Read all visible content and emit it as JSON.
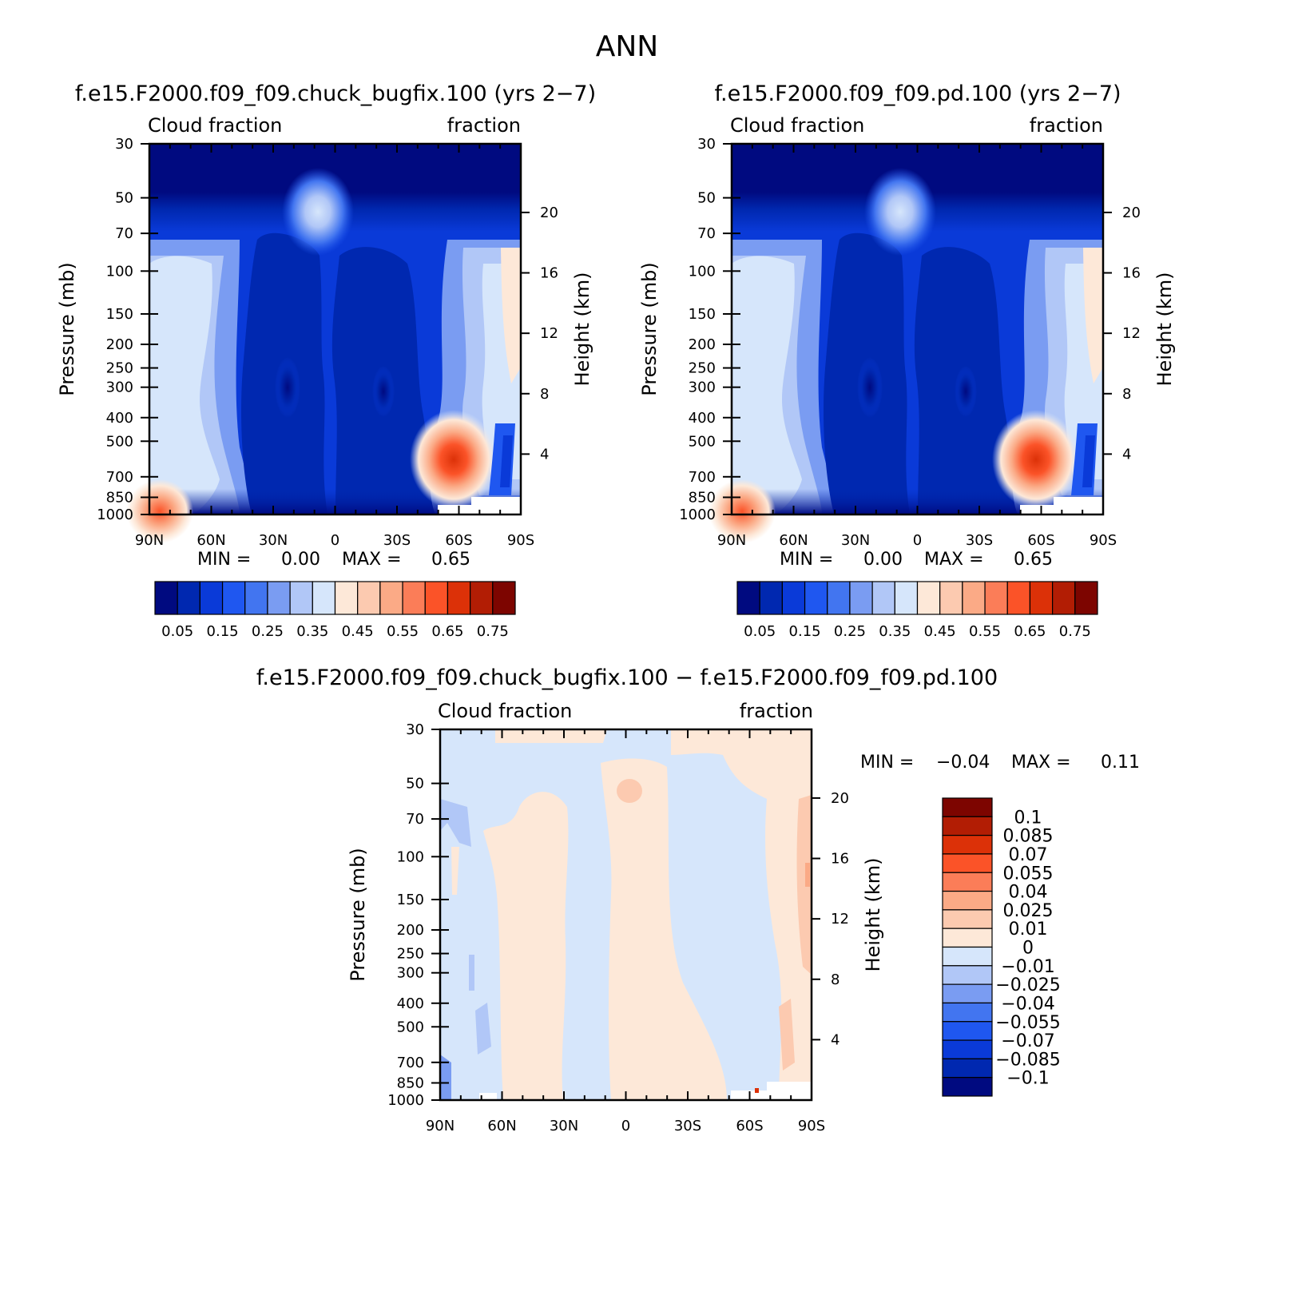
{
  "figure": {
    "title": "ANN"
  },
  "colors": {
    "abs_palette": [
      "#000a80",
      "#0028b0",
      "#0a3ad8",
      "#1f57f0",
      "#4275f0",
      "#7a9cf2",
      "#b1c7f7",
      "#d6e6fb",
      "#fde8d8",
      "#fccab0",
      "#fbaa86",
      "#fb7d58",
      "#fb5328",
      "#dc3108",
      "#b21d04",
      "#7d0500"
    ],
    "diff_palette": [
      "#000a80",
      "#0028b0",
      "#0a3ad8",
      "#1f57f0",
      "#4275f0",
      "#7a9cf2",
      "#b1c7f7",
      "#d6e6fb",
      "#fde8d8",
      "#fccab0",
      "#fbaa86",
      "#fb7d58",
      "#fb5328",
      "#dc3108",
      "#b21d04",
      "#7d0500"
    ]
  },
  "panels": {
    "p1": {
      "title": "f.e15.F2000.f09_f09.chuck_bugfix.100 (yrs 2−7)",
      "left_label": "Cloud fraction",
      "right_label": "fraction",
      "min_text": "MIN =",
      "min_value": "0.00",
      "max_text": "MAX =",
      "max_value": "0.65"
    },
    "p2": {
      "title": "f.e15.F2000.f09_f09.pd.100 (yrs 2−7)",
      "left_label": "Cloud fraction",
      "right_label": "fraction",
      "min_text": "MIN =",
      "min_value": "0.00",
      "max_text": "MAX =",
      "max_value": "0.65"
    },
    "p3": {
      "title": "f.e15.F2000.f09_f09.chuck_bugfix.100 − f.e15.F2000.f09_f09.pd.100",
      "left_label": "Cloud fraction",
      "right_label": "fraction",
      "min_text": "MIN =",
      "min_value": "−0.04",
      "max_text": "MAX =",
      "max_value": "0.11"
    }
  },
  "chart_data": [
    {
      "type": "heatmap",
      "title": "f.e15.F2000.f09_f09.chuck_bugfix.100 (yrs 2−7)",
      "xlabel": "",
      "ylabel": "Pressure (mb)",
      "y2label": "Height (km)",
      "x_ticks": [
        "90N",
        "60N",
        "30N",
        "0",
        "30S",
        "60S",
        "90S"
      ],
      "x_values": [
        90,
        60,
        30,
        0,
        -30,
        -60,
        -90
      ],
      "y_ticks": [
        "30",
        "50",
        "70",
        "100",
        "150",
        "200",
        "250",
        "300",
        "400",
        "500",
        "700",
        "850",
        "1000"
      ],
      "y_values": [
        30,
        50,
        70,
        100,
        150,
        200,
        250,
        300,
        400,
        500,
        700,
        850,
        1000
      ],
      "y2_ticks": [
        "20",
        "16",
        "12",
        "8",
        "4"
      ],
      "y2_values": [
        20,
        16,
        12,
        8,
        4
      ],
      "xlim": [
        90,
        -90
      ],
      "ylim": [
        1000,
        30
      ],
      "y_scale": "log",
      "min": 0.0,
      "max": 0.65,
      "colorbar_labels": [
        "0.05",
        "0.15",
        "0.25",
        "0.35",
        "0.45",
        "0.55",
        "0.65",
        "0.75"
      ],
      "levels": [
        0.05,
        0.1,
        0.15,
        0.2,
        0.25,
        0.3,
        0.35,
        0.4,
        0.45,
        0.5,
        0.55,
        0.6,
        0.65,
        0.7,
        0.75
      ],
      "colorbar_orientation": "horizontal"
    },
    {
      "type": "heatmap",
      "title": "f.e15.F2000.f09_f09.pd.100 (yrs 2−7)",
      "xlabel": "",
      "ylabel": "Pressure (mb)",
      "y2label": "Height (km)",
      "x_ticks": [
        "90N",
        "60N",
        "30N",
        "0",
        "30S",
        "60S",
        "90S"
      ],
      "x_values": [
        90,
        60,
        30,
        0,
        -30,
        -60,
        -90
      ],
      "y_ticks": [
        "30",
        "50",
        "70",
        "100",
        "150",
        "200",
        "250",
        "300",
        "400",
        "500",
        "700",
        "850",
        "1000"
      ],
      "y_values": [
        30,
        50,
        70,
        100,
        150,
        200,
        250,
        300,
        400,
        500,
        700,
        850,
        1000
      ],
      "y2_ticks": [
        "20",
        "16",
        "12",
        "8",
        "4"
      ],
      "y2_values": [
        20,
        16,
        12,
        8,
        4
      ],
      "xlim": [
        90,
        -90
      ],
      "ylim": [
        1000,
        30
      ],
      "y_scale": "log",
      "min": 0.0,
      "max": 0.65,
      "colorbar_labels": [
        "0.05",
        "0.15",
        "0.25",
        "0.35",
        "0.45",
        "0.55",
        "0.65",
        "0.75"
      ],
      "levels": [
        0.05,
        0.1,
        0.15,
        0.2,
        0.25,
        0.3,
        0.35,
        0.4,
        0.45,
        0.5,
        0.55,
        0.6,
        0.65,
        0.7,
        0.75
      ],
      "colorbar_orientation": "horizontal"
    },
    {
      "type": "heatmap",
      "title": "f.e15.F2000.f09_f09.chuck_bugfix.100 − f.e15.F2000.f09_f09.pd.100",
      "xlabel": "",
      "ylabel": "Pressure (mb)",
      "y2label": "Height (km)",
      "x_ticks": [
        "90N",
        "60N",
        "30N",
        "0",
        "30S",
        "60S",
        "90S"
      ],
      "x_values": [
        90,
        60,
        30,
        0,
        -30,
        -60,
        -90
      ],
      "y_ticks": [
        "30",
        "50",
        "70",
        "100",
        "150",
        "200",
        "250",
        "300",
        "400",
        "500",
        "700",
        "850",
        "1000"
      ],
      "y_values": [
        30,
        50,
        70,
        100,
        150,
        200,
        250,
        300,
        400,
        500,
        700,
        850,
        1000
      ],
      "y2_ticks": [
        "20",
        "16",
        "12",
        "8",
        "4"
      ],
      "y2_values": [
        20,
        16,
        12,
        8,
        4
      ],
      "xlim": [
        90,
        -90
      ],
      "ylim": [
        1000,
        30
      ],
      "y_scale": "log",
      "min": -0.04,
      "max": 0.11,
      "colorbar_labels": [
        "0.1",
        "0.085",
        "0.07",
        "0.055",
        "0.04",
        "0.025",
        "0.01",
        "0",
        "−0.01",
        "−0.025",
        "−0.04",
        "−0.055",
        "−0.07",
        "−0.085",
        "−0.1"
      ],
      "levels": [
        -0.1,
        -0.085,
        -0.07,
        -0.055,
        -0.04,
        -0.025,
        -0.01,
        0,
        0.01,
        0.025,
        0.04,
        0.055,
        0.07,
        0.085,
        0.1
      ],
      "colorbar_orientation": "vertical"
    }
  ]
}
